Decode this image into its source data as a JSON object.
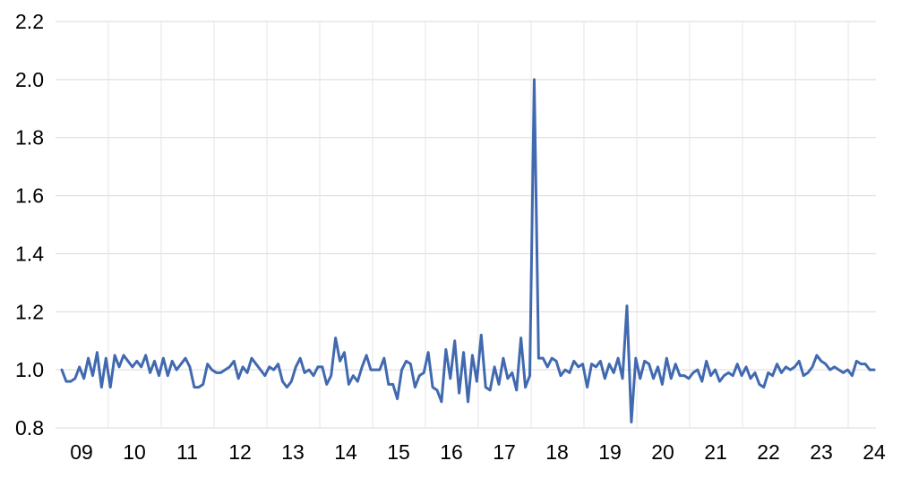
{
  "chart_data": {
    "type": "line",
    "title": "",
    "xlabel": "",
    "ylabel": "",
    "ylim": [
      0.8,
      2.2
    ],
    "yticks": [
      "0.8",
      "1.0",
      "1.2",
      "1.4",
      "1.6",
      "1.8",
      "2.0",
      "2.2"
    ],
    "xticks": [
      "09",
      "10",
      "11",
      "12",
      "13",
      "14",
      "15",
      "16",
      "17",
      "18",
      "19",
      "20",
      "21",
      "22",
      "23",
      "24"
    ],
    "grid": true,
    "legend": "none",
    "line_color": "#4169B0",
    "series": [
      {
        "values": [
          1.0,
          0.96,
          0.96,
          0.97,
          1.01,
          0.97,
          1.04,
          0.98,
          1.06,
          0.94,
          1.04,
          0.94,
          1.05,
          1.01,
          1.05,
          1.03,
          1.01,
          1.03,
          1.01,
          1.05,
          0.99,
          1.03,
          0.98,
          1.04,
          0.98,
          1.03,
          1.0,
          1.02,
          1.04,
          1.01,
          0.94,
          0.94,
          0.95,
          1.02,
          1.0,
          0.99,
          0.99,
          1.0,
          1.01,
          1.03,
          0.97,
          1.01,
          0.99,
          1.04,
          1.02,
          1.0,
          0.98,
          1.01,
          1.0,
          1.02,
          0.96,
          0.94,
          0.96,
          1.01,
          1.04,
          0.99,
          1.0,
          0.98,
          1.01,
          1.01,
          0.95,
          0.98,
          1.11,
          1.03,
          1.06,
          0.95,
          0.98,
          0.96,
          1.01,
          1.05,
          1.0,
          1.0,
          1.0,
          1.04,
          0.95,
          0.95,
          0.9,
          1.0,
          1.03,
          1.02,
          0.94,
          0.98,
          0.99,
          1.06,
          0.94,
          0.93,
          0.89,
          1.07,
          0.97,
          1.1,
          0.92,
          1.06,
          0.89,
          1.05,
          0.96,
          1.12,
          0.94,
          0.93,
          1.01,
          0.95,
          1.04,
          0.97,
          0.99,
          0.93,
          1.11,
          0.94,
          0.98,
          2.0,
          1.04,
          1.04,
          1.01,
          1.04,
          1.03,
          0.98,
          1.0,
          0.99,
          1.03,
          1.01,
          1.02,
          0.94,
          1.02,
          1.01,
          1.03,
          0.97,
          1.02,
          0.99,
          1.04,
          0.97,
          1.22,
          0.82,
          1.04,
          0.97,
          1.03,
          1.02,
          0.97,
          1.01,
          0.95,
          1.04,
          0.97,
          1.02,
          0.98,
          0.98,
          0.97,
          0.99,
          1.0,
          0.96,
          1.03,
          0.98,
          1.0,
          0.96,
          0.98,
          0.99,
          0.98,
          1.02,
          0.98,
          1.01,
          0.97,
          0.99,
          0.95,
          0.94,
          0.99,
          0.98,
          1.02,
          0.99,
          1.01,
          1.0,
          1.01,
          1.03,
          0.98,
          0.99,
          1.01,
          1.05,
          1.03,
          1.02,
          1.0,
          1.01,
          1.0,
          0.99,
          1.0,
          0.98,
          1.03,
          1.02,
          1.02,
          1.0,
          1.0
        ]
      }
    ]
  }
}
